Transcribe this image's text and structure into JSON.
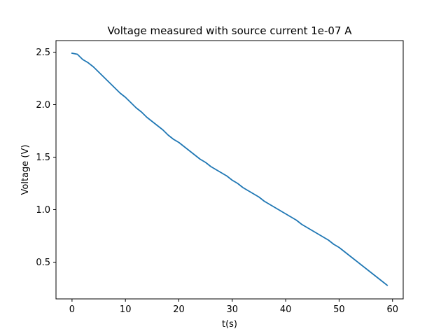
{
  "chart_data": {
    "type": "line",
    "title": "Voltage measured with source current 1e-07 A",
    "xlabel": "t(s)",
    "ylabel": "Voltage (V)",
    "xlim": [
      -3,
      62
    ],
    "ylim": [
      0.15,
      2.61
    ],
    "xticks": [
      0,
      10,
      20,
      30,
      40,
      50,
      60
    ],
    "xtick_labels": [
      "0",
      "10",
      "20",
      "30",
      "40",
      "50",
      "60"
    ],
    "yticks": [
      0.5,
      1.0,
      1.5,
      2.0,
      2.5
    ],
    "ytick_labels": [
      "0.5",
      "1.0",
      "1.5",
      "2.0",
      "2.5"
    ],
    "grid": false,
    "line_color": "#1f77b4",
    "series": [
      {
        "x": [
          0,
          1,
          2,
          3,
          4,
          5,
          6,
          7,
          8,
          9,
          10,
          11,
          12,
          13,
          14,
          15,
          16,
          17,
          18,
          19,
          20,
          21,
          22,
          23,
          24,
          25,
          26,
          27,
          28,
          29,
          30,
          31,
          32,
          33,
          34,
          35,
          36,
          37,
          38,
          39,
          40,
          41,
          42,
          43,
          44,
          45,
          46,
          47,
          48,
          49,
          50,
          51,
          52,
          53,
          54,
          55,
          56,
          57,
          58,
          59
        ],
        "values": [
          2.49,
          2.48,
          2.43,
          2.4,
          2.36,
          2.31,
          2.26,
          2.21,
          2.16,
          2.11,
          2.07,
          2.02,
          1.97,
          1.93,
          1.88,
          1.84,
          1.8,
          1.76,
          1.71,
          1.67,
          1.64,
          1.6,
          1.56,
          1.52,
          1.48,
          1.45,
          1.41,
          1.38,
          1.35,
          1.32,
          1.28,
          1.25,
          1.21,
          1.18,
          1.15,
          1.12,
          1.08,
          1.05,
          1.02,
          0.99,
          0.96,
          0.93,
          0.9,
          0.86,
          0.83,
          0.8,
          0.77,
          0.74,
          0.71,
          0.67,
          0.64,
          0.6,
          0.56,
          0.52,
          0.48,
          0.44,
          0.4,
          0.36,
          0.32,
          0.28
        ]
      }
    ]
  }
}
